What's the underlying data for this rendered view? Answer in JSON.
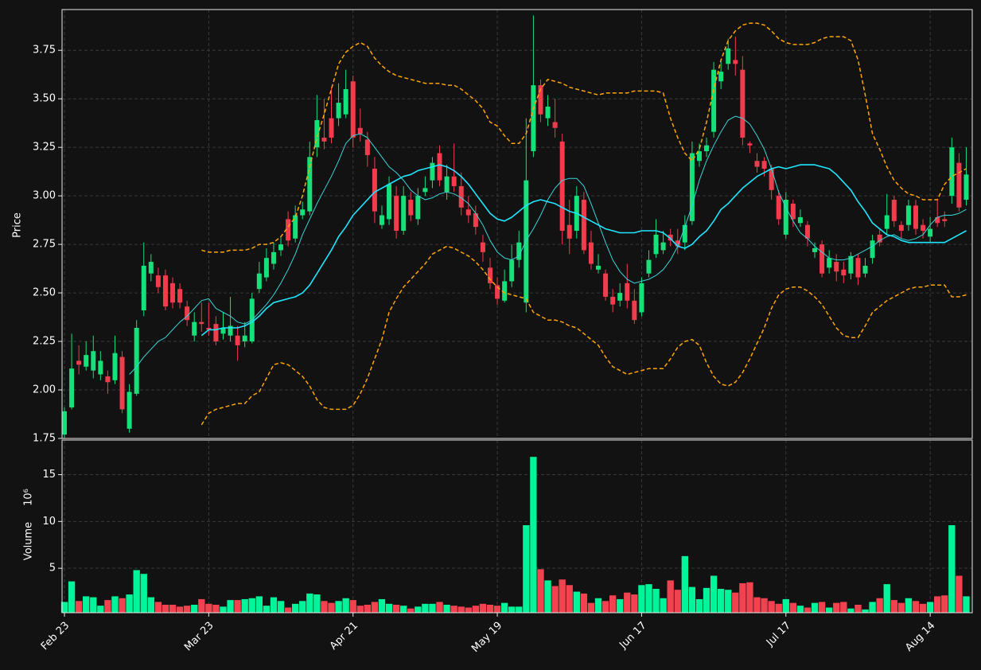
{
  "chart_data": {
    "type": "candlestick",
    "ylabel": "Price",
    "ylim": [
      1.75,
      3.96
    ],
    "yticks": [
      1.75,
      {
        "value": 2,
        "label": "2.00"
      },
      2.25,
      {
        "value": 2.5,
        "label": "2.50"
      },
      2.75,
      {
        "value": 3,
        "label": "3.00"
      },
      3.25,
      {
        "value": 3.5,
        "label": "3.50"
      },
      3.75
    ],
    "grid": true,
    "up_color": "#16e07a",
    "down_color": "#f23b4c",
    "categories": [
      "Feb 23",
      null,
      null,
      null,
      null,
      null,
      null,
      null,
      null,
      null,
      null,
      null,
      null,
      null,
      null,
      null,
      null,
      null,
      null,
      null,
      "Mar 23",
      null,
      null,
      null,
      null,
      null,
      null,
      null,
      null,
      null,
      null,
      null,
      null,
      null,
      null,
      null,
      null,
      null,
      null,
      null,
      "Apr 21",
      null,
      null,
      null,
      null,
      null,
      null,
      null,
      null,
      null,
      null,
      null,
      null,
      null,
      null,
      null,
      null,
      null,
      null,
      null,
      "May 19",
      null,
      null,
      null,
      null,
      null,
      null,
      null,
      null,
      null,
      null,
      null,
      null,
      null,
      null,
      null,
      null,
      null,
      null,
      null,
      "Jun 17",
      null,
      null,
      null,
      null,
      null,
      null,
      null,
      null,
      null,
      null,
      null,
      null,
      null,
      null,
      null,
      null,
      null,
      null,
      null,
      "Jul 17",
      null,
      null,
      null,
      null,
      null,
      null,
      null,
      null,
      null,
      null,
      null,
      null,
      null,
      null,
      null,
      null,
      null,
      null,
      null,
      "Aug 14",
      null,
      null,
      null,
      null,
      null
    ],
    "open": [
      1.77,
      1.91,
      2.15,
      2.12,
      2.1,
      2.08,
      2.07,
      2.05,
      2.17,
      1.8,
      1.98,
      2.41,
      2.6,
      2.59,
      2.59,
      2.55,
      2.52,
      2.43,
      2.28,
      2.35,
      2.32,
      2.34,
      2.29,
      2.28,
      2.28,
      2.25,
      2.25,
      2.52,
      2.58,
      2.65,
      2.72,
      2.88,
      2.78,
      2.9,
      2.92,
      3.25,
      3.3,
      3.4,
      3.4,
      3.42,
      3.59,
      3.35,
      3.29,
      3.14,
      2.85,
      2.88,
      3.0,
      2.82,
      2.98,
      2.88,
      3.02,
      3.08,
      3.22,
      3.02,
      3.1,
      3.05,
      2.93,
      2.91,
      2.76,
      2.63,
      2.54,
      2.46,
      2.56,
      2.67,
      2.45,
      3.23,
      3.57,
      3.4,
      3.38,
      3.28,
      2.85,
      2.82,
      2.98,
      2.76,
      2.62,
      2.6,
      2.48,
      2.46,
      2.55,
      2.46,
      2.4,
      2.6,
      2.7,
      2.72,
      2.8,
      2.77,
      2.76,
      2.87,
      3.18,
      3.23,
      3.33,
      3.59,
      3.68,
      3.7,
      3.65,
      3.27,
      3.18,
      3.18,
      3.14,
      3.0,
      2.8,
      2.96,
      2.86,
      2.85,
      2.71,
      2.75,
      2.63,
      2.66,
      2.62,
      2.6,
      2.68,
      2.6,
      2.68,
      2.8,
      2.83,
      2.98,
      2.85,
      2.85,
      2.95,
      2.85,
      2.79,
      2.89,
      2.88,
      3.0,
      3.17,
      2.98
    ],
    "high": [
      1.91,
      2.29,
      2.23,
      2.25,
      2.28,
      2.2,
      2.1,
      2.28,
      2.2,
      2.03,
      2.36,
      2.76,
      2.7,
      2.63,
      2.62,
      2.58,
      2.55,
      2.46,
      2.4,
      2.45,
      2.45,
      2.38,
      2.4,
      2.48,
      2.33,
      2.35,
      2.5,
      2.66,
      2.73,
      2.76,
      2.79,
      2.92,
      2.95,
      2.97,
      3.28,
      3.52,
      3.5,
      3.56,
      3.58,
      3.65,
      3.62,
      3.45,
      3.33,
      3.2,
      2.95,
      3.1,
      3.05,
      3.05,
      3.02,
      3.04,
      3.1,
      3.2,
      3.26,
      3.16,
      3.27,
      3.12,
      3.0,
      2.95,
      2.8,
      2.68,
      2.58,
      2.62,
      2.75,
      2.82,
      3.4,
      3.93,
      3.6,
      3.52,
      3.5,
      3.32,
      2.98,
      3.05,
      3.02,
      2.82,
      2.7,
      2.62,
      2.52,
      2.55,
      2.65,
      2.52,
      2.58,
      2.72,
      2.88,
      2.82,
      2.83,
      2.83,
      2.9,
      3.28,
      3.27,
      3.3,
      3.69,
      3.7,
      3.81,
      3.82,
      3.72,
      3.28,
      3.22,
      3.2,
      3.16,
      3.03,
      3.02,
      2.98,
      2.93,
      2.87,
      2.76,
      2.77,
      2.72,
      2.7,
      2.66,
      2.71,
      2.7,
      2.68,
      2.8,
      2.83,
      3.01,
      3.0,
      2.87,
      2.98,
      2.98,
      2.88,
      2.89,
      2.98,
      2.92,
      3.3,
      3.22,
      3.25
    ],
    "low": [
      1.75,
      1.9,
      2.08,
      2.1,
      2.06,
      2.05,
      1.98,
      2.03,
      1.88,
      1.78,
      1.97,
      2.38,
      2.56,
      2.5,
      2.41,
      2.42,
      2.42,
      2.33,
      2.25,
      2.3,
      2.28,
      2.23,
      2.26,
      2.25,
      2.15,
      2.22,
      2.24,
      2.5,
      2.56,
      2.62,
      2.69,
      2.74,
      2.76,
      2.88,
      2.9,
      3.2,
      3.24,
      3.27,
      3.36,
      3.4,
      3.25,
      3.28,
      3.15,
      2.86,
      2.83,
      2.85,
      2.78,
      2.8,
      2.87,
      2.85,
      3.0,
      3.04,
      3.05,
      2.98,
      3.02,
      2.9,
      2.86,
      2.8,
      2.66,
      2.52,
      2.44,
      2.45,
      2.53,
      2.63,
      2.4,
      3.2,
      3.38,
      3.36,
      3.3,
      2.75,
      2.7,
      2.78,
      2.7,
      2.62,
      2.6,
      2.46,
      2.4,
      2.43,
      2.42,
      2.34,
      2.38,
      2.58,
      2.68,
      2.7,
      2.74,
      2.7,
      2.72,
      2.85,
      3.15,
      3.2,
      3.3,
      3.55,
      3.65,
      3.62,
      3.26,
      3.22,
      3.12,
      3.1,
      2.98,
      2.85,
      2.78,
      2.84,
      2.84,
      2.74,
      2.68,
      2.58,
      2.6,
      2.56,
      2.55,
      2.57,
      2.54,
      2.58,
      2.65,
      2.74,
      2.8,
      2.84,
      2.78,
      2.82,
      2.8,
      2.78,
      2.76,
      2.84,
      2.84,
      2.96,
      2.92,
      2.95
    ],
    "close": [
      1.89,
      2.11,
      2.13,
      2.18,
      2.2,
      2.15,
      2.04,
      2.19,
      1.9,
      1.99,
      2.32,
      2.64,
      2.66,
      2.53,
      2.43,
      2.45,
      2.45,
      2.36,
      2.35,
      2.34,
      2.31,
      2.25,
      2.32,
      2.33,
      2.23,
      2.28,
      2.47,
      2.6,
      2.68,
      2.71,
      2.75,
      2.77,
      2.9,
      2.93,
      3.2,
      3.39,
      3.28,
      3.3,
      3.48,
      3.55,
      3.3,
      3.32,
      3.21,
      2.92,
      2.9,
      3.06,
      2.82,
      3.0,
      2.9,
      3.0,
      3.04,
      3.17,
      3.08,
      3.1,
      3.05,
      2.94,
      2.9,
      2.84,
      2.71,
      2.55,
      2.47,
      2.56,
      2.67,
      2.76,
      3.08,
      3.57,
      3.42,
      3.46,
      3.35,
      2.82,
      2.78,
      3.0,
      2.72,
      2.65,
      2.64,
      2.48,
      2.44,
      2.5,
      2.46,
      2.36,
      2.55,
      2.67,
      2.8,
      2.76,
      2.77,
      2.74,
      2.85,
      3.22,
      3.23,
      3.26,
      3.65,
      3.64,
      3.76,
      3.68,
      3.3,
      3.26,
      3.15,
      3.14,
      3.03,
      2.88,
      2.98,
      2.88,
      2.89,
      2.78,
      2.73,
      2.6,
      2.68,
      2.61,
      2.59,
      2.69,
      2.58,
      2.64,
      2.77,
      2.76,
      2.9,
      2.87,
      2.82,
      2.95,
      2.83,
      2.82,
      2.83,
      2.86,
      2.87,
      3.25,
      2.94,
      3.11
    ],
    "lines": [
      {
        "color": "#3ad4d8",
        "width": 1,
        "values": [
          null,
          null,
          null,
          null,
          null,
          null,
          null,
          null,
          null,
          2.08,
          2.12,
          2.17,
          2.21,
          2.25,
          2.27,
          2.31,
          2.35,
          2.38,
          2.42,
          2.46,
          2.47,
          2.42,
          2.4,
          2.38,
          2.35,
          2.34,
          2.36,
          2.4,
          2.44,
          2.49,
          2.55,
          2.62,
          2.7,
          2.8,
          2.88,
          2.96,
          3.03,
          3.1,
          3.18,
          3.27,
          3.31,
          3.32,
          3.3,
          3.25,
          3.2,
          3.15,
          3.12,
          3.08,
          3.03,
          3.0,
          2.98,
          2.99,
          3.01,
          3.02,
          3.01,
          2.99,
          2.96,
          2.91,
          2.85,
          2.77,
          2.71,
          2.68,
          2.67,
          2.69,
          2.77,
          2.83,
          2.9,
          2.98,
          3.04,
          3.08,
          3.09,
          3.09,
          3.05,
          2.96,
          2.86,
          2.76,
          2.67,
          2.61,
          2.57,
          2.55,
          2.56,
          2.57,
          2.59,
          2.62,
          2.67,
          2.74,
          2.84,
          2.95,
          3.08,
          3.18,
          3.26,
          3.33,
          3.39,
          3.41,
          3.4,
          3.37,
          3.31,
          3.24,
          3.14,
          3.02,
          2.94,
          2.87,
          2.81,
          2.78,
          2.74,
          2.71,
          2.68,
          2.67,
          2.67,
          2.68,
          2.7,
          2.72,
          2.74,
          2.77,
          2.79,
          2.8,
          2.78,
          2.77,
          2.78,
          2.8,
          2.85,
          2.89,
          2.9,
          2.9,
          2.91,
          2.93
        ]
      },
      {
        "color": "#1ee6ff",
        "width": 1.6,
        "values": [
          null,
          null,
          null,
          null,
          null,
          null,
          null,
          null,
          null,
          null,
          null,
          null,
          null,
          null,
          null,
          null,
          null,
          null,
          null,
          2.28,
          2.31,
          2.31,
          2.32,
          2.32,
          2.32,
          2.33,
          2.35,
          2.38,
          2.42,
          2.45,
          2.46,
          2.47,
          2.48,
          2.5,
          2.54,
          2.6,
          2.66,
          2.72,
          2.79,
          2.84,
          2.9,
          2.94,
          2.98,
          3.02,
          3.04,
          3.06,
          3.08,
          3.1,
          3.11,
          3.13,
          3.14,
          3.15,
          3.16,
          3.15,
          3.13,
          3.1,
          3.06,
          3.01,
          2.96,
          2.91,
          2.88,
          2.87,
          2.89,
          2.92,
          2.95,
          2.97,
          2.98,
          2.97,
          2.96,
          2.94,
          2.92,
          2.91,
          2.89,
          2.87,
          2.85,
          2.83,
          2.82,
          2.81,
          2.81,
          2.81,
          2.82,
          2.82,
          2.82,
          2.81,
          2.78,
          2.74,
          2.73,
          2.75,
          2.79,
          2.82,
          2.87,
          2.93,
          2.96,
          3.0,
          3.04,
          3.07,
          3.1,
          3.12,
          3.14,
          3.15,
          3.14,
          3.15,
          3.16,
          3.16,
          3.16,
          3.15,
          3.14,
          3.11,
          3.07,
          3.03,
          2.97,
          2.92,
          2.86,
          2.83,
          2.8,
          2.79,
          2.77,
          2.76,
          2.76,
          2.76,
          2.76,
          2.76,
          2.76,
          2.78,
          2.8,
          2.82
        ]
      },
      {
        "color": "#ffa500",
        "width": 1.5,
        "dash": true,
        "values": [
          null,
          null,
          null,
          null,
          null,
          null,
          null,
          null,
          null,
          null,
          null,
          null,
          null,
          null,
          null,
          null,
          null,
          null,
          null,
          2.72,
          2.71,
          2.71,
          2.71,
          2.72,
          2.72,
          2.72,
          2.73,
          2.75,
          2.75,
          2.76,
          2.79,
          2.84,
          2.89,
          3.0,
          3.15,
          3.3,
          3.42,
          3.55,
          3.68,
          3.74,
          3.77,
          3.79,
          3.77,
          3.71,
          3.67,
          3.64,
          3.62,
          3.61,
          3.6,
          3.59,
          3.58,
          3.58,
          3.58,
          3.57,
          3.57,
          3.55,
          3.52,
          3.49,
          3.45,
          3.38,
          3.36,
          3.31,
          3.27,
          3.27,
          3.32,
          3.45,
          3.55,
          3.6,
          3.59,
          3.58,
          3.56,
          3.55,
          3.54,
          3.53,
          3.52,
          3.53,
          3.53,
          3.53,
          3.53,
          3.54,
          3.54,
          3.54,
          3.54,
          3.53,
          3.4,
          3.3,
          3.22,
          3.18,
          3.24,
          3.38,
          3.55,
          3.7,
          3.8,
          3.85,
          3.88,
          3.89,
          3.89,
          3.88,
          3.85,
          3.81,
          3.79,
          3.78,
          3.78,
          3.78,
          3.79,
          3.81,
          3.82,
          3.82,
          3.82,
          3.8,
          3.7,
          3.52,
          3.32,
          3.24,
          3.15,
          3.08,
          3.04,
          3.01,
          3.0,
          2.98,
          2.98,
          2.98,
          3.06,
          3.1,
          3.12,
          3.14
        ]
      },
      {
        "color": "#ffa500",
        "width": 1.5,
        "dash": true,
        "values": [
          null,
          null,
          null,
          null,
          null,
          null,
          null,
          null,
          null,
          null,
          null,
          null,
          null,
          null,
          null,
          null,
          null,
          null,
          null,
          1.82,
          1.88,
          1.9,
          1.91,
          1.92,
          1.93,
          1.93,
          1.97,
          1.99,
          2.06,
          2.13,
          2.14,
          2.13,
          2.1,
          2.07,
          2.02,
          1.95,
          1.91,
          1.9,
          1.9,
          1.9,
          1.92,
          1.98,
          2.06,
          2.16,
          2.26,
          2.4,
          2.47,
          2.53,
          2.57,
          2.61,
          2.65,
          2.7,
          2.72,
          2.74,
          2.73,
          2.71,
          2.69,
          2.66,
          2.62,
          2.57,
          2.53,
          2.5,
          2.49,
          2.48,
          2.47,
          2.4,
          2.38,
          2.36,
          2.36,
          2.35,
          2.33,
          2.32,
          2.29,
          2.26,
          2.23,
          2.17,
          2.12,
          2.1,
          2.08,
          2.09,
          2.1,
          2.11,
          2.11,
          2.11,
          2.16,
          2.22,
          2.25,
          2.26,
          2.23,
          2.14,
          2.07,
          2.03,
          2.02,
          2.04,
          2.09,
          2.16,
          2.24,
          2.32,
          2.42,
          2.49,
          2.52,
          2.53,
          2.53,
          2.51,
          2.48,
          2.44,
          2.38,
          2.32,
          2.28,
          2.27,
          2.27,
          2.33,
          2.4,
          2.43,
          2.46,
          2.48,
          2.5,
          2.52,
          2.53,
          2.53,
          2.54,
          2.54,
          2.54,
          2.48,
          2.48,
          2.49
        ]
      }
    ],
    "volume": {
      "type": "bar",
      "ylabel": "Volume",
      "scale_label": "10⁶",
      "ylim": [
        0.25,
        18.7
      ],
      "yticks": [
        5,
        10,
        15
      ],
      "up_color": "#00f59b",
      "down_color": "#f2424f",
      "values": [
        1.4,
        3.6,
        1.5,
        2.0,
        1.9,
        1.0,
        1.6,
        2.0,
        1.8,
        2.2,
        4.8,
        4.4,
        1.9,
        1.4,
        1.1,
        1.1,
        0.9,
        1.0,
        1.1,
        1.7,
        1.2,
        1.1,
        0.9,
        1.6,
        1.6,
        1.7,
        1.8,
        2.0,
        1.0,
        1.9,
        1.5,
        0.8,
        1.2,
        1.5,
        2.3,
        2.2,
        1.5,
        1.3,
        1.5,
        1.8,
        1.6,
        1.0,
        1.1,
        1.4,
        1.7,
        1.2,
        1.1,
        1.0,
        0.7,
        0.9,
        1.2,
        1.2,
        1.4,
        1.1,
        1.0,
        0.9,
        0.8,
        1.0,
        1.2,
        1.1,
        1.0,
        1.3,
        0.9,
        0.9,
        9.6,
        16.9,
        4.9,
        3.7,
        3.1,
        3.8,
        3.2,
        2.5,
        2.3,
        1.3,
        1.8,
        1.5,
        2.1,
        1.7,
        2.4,
        2.2,
        3.2,
        3.3,
        2.8,
        1.8,
        3.7,
        2.7,
        6.3,
        3.0,
        1.7,
        2.9,
        4.2,
        2.8,
        2.7,
        2.4,
        3.4,
        3.5,
        1.9,
        1.8,
        1.5,
        1.2,
        1.7,
        1.3,
        1.0,
        0.8,
        1.3,
        1.4,
        0.8,
        1.3,
        1.4,
        0.7,
        1.1,
        0.6,
        1.4,
        1.8,
        3.3,
        1.6,
        1.3,
        1.8,
        1.5,
        1.2,
        1.4,
        2.0,
        2.1,
        9.6,
        4.2,
        2.0
      ]
    }
  }
}
